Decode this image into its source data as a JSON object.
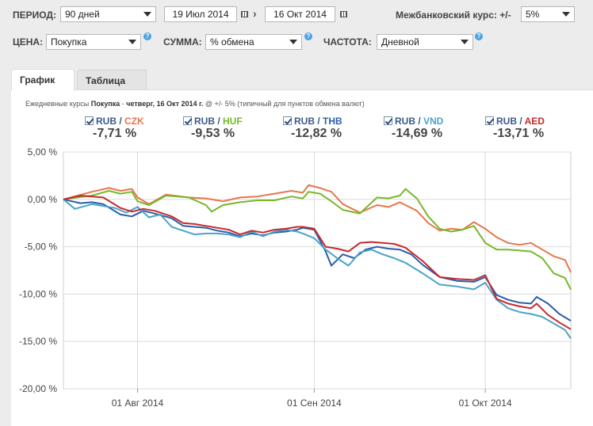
{
  "controls": {
    "period_label": "ПЕРИОД:",
    "period_value": "90 дней",
    "date_from": "19 Июл 2014",
    "date_arrow": "›",
    "date_to": "16 Окт 2014",
    "interbank_label": "Межбанковский курс: +/-",
    "interbank_value": "5%",
    "price_label": "ЦЕНА:",
    "price_value": "Покупка",
    "sum_label": "СУММА:",
    "sum_value": "% обмена",
    "freq_label": "ЧАСТОТА:",
    "freq_value": "Дневной",
    "help_glyph": "?"
  },
  "tabs": {
    "chart": "График",
    "table": "Таблица"
  },
  "subtitle": {
    "prefix": "Ежедневные курсы",
    "price": "Покупка",
    "sep": " - ",
    "date": "четверг, 16 Окт 2014 г.",
    "suffix": " @ +/- 5% (типичный для пунктов обмена валют)"
  },
  "legend": [
    {
      "base": "RUB",
      "sep": " / ",
      "quote": "CZK",
      "change": "-7,71 %",
      "color": "#e8764a"
    },
    {
      "base": "RUB",
      "sep": " / ",
      "quote": "HUF",
      "change": "-9,53 %",
      "color": "#76b82a"
    },
    {
      "base": "RUB",
      "sep": " / ",
      "quote": "THB",
      "change": "-12,82 %",
      "color": "#2a5ea8"
    },
    {
      "base": "RUB",
      "sep": " / ",
      "quote": "VND",
      "change": "-14,69 %",
      "color": "#4aa3c8"
    },
    {
      "base": "RUB",
      "sep": " / ",
      "quote": "AED",
      "change": "-13,71 %",
      "color": "#c8282c"
    }
  ],
  "chart_data": {
    "type": "line",
    "title": "Ежедневные курсы Покупка - четверг, 16 Окт 2014 г.",
    "ylim": [
      -20,
      5
    ],
    "yticks": [
      5,
      0,
      -5,
      -10,
      -15,
      -20
    ],
    "ytick_labels": [
      "5,00 %",
      "0,00 %",
      "-5,00 %",
      "-10,00 %",
      "-15,00 %",
      "-20,00 %"
    ],
    "xlim": [
      0,
      89
    ],
    "xticks": [
      13,
      44,
      74
    ],
    "xtick_labels": [
      "01 Авг 2014",
      "01 Сен 2014",
      "01 Окт 2014"
    ],
    "grid": true,
    "series": [
      {
        "name": "RUB / CZK",
        "color": "#e8764a",
        "points": [
          [
            0,
            0
          ],
          [
            5,
            0.8
          ],
          [
            8,
            1.2
          ],
          [
            10,
            0.9
          ],
          [
            12,
            1.1
          ],
          [
            13,
            0.2
          ],
          [
            15,
            -0.5
          ],
          [
            18,
            0.5
          ],
          [
            22,
            0.2
          ],
          [
            25,
            0.1
          ],
          [
            28,
            -0.2
          ],
          [
            31,
            0.2
          ],
          [
            34,
            0.3
          ],
          [
            37,
            0.6
          ],
          [
            40,
            0.9
          ],
          [
            42,
            0.7
          ],
          [
            43,
            1.5
          ],
          [
            45,
            1.2
          ],
          [
            47,
            0.8
          ],
          [
            49,
            -0.5
          ],
          [
            52,
            -1.4
          ],
          [
            55,
            -0.6
          ],
          [
            57,
            -0.8
          ],
          [
            59,
            -0.3
          ],
          [
            60,
            -0.6
          ],
          [
            62,
            -1.2
          ],
          [
            64,
            -2.5
          ],
          [
            66,
            -3.3
          ],
          [
            68,
            -3.1
          ],
          [
            70,
            -3.2
          ],
          [
            72,
            -2.4
          ],
          [
            74,
            -3.1
          ],
          [
            76,
            -4.0
          ],
          [
            78,
            -4.6
          ],
          [
            80,
            -4.8
          ],
          [
            82,
            -4.6
          ],
          [
            84,
            -5.3
          ],
          [
            86,
            -6.0
          ],
          [
            88,
            -6.4
          ],
          [
            89,
            -7.7
          ]
        ]
      },
      {
        "name": "RUB / HUF",
        "color": "#76b82a",
        "points": [
          [
            0,
            0
          ],
          [
            5,
            0.4
          ],
          [
            8,
            0.9
          ],
          [
            10,
            0.6
          ],
          [
            12,
            0.8
          ],
          [
            13,
            -0.2
          ],
          [
            15,
            -0.6
          ],
          [
            18,
            0.4
          ],
          [
            22,
            0.2
          ],
          [
            25,
            -0.6
          ],
          [
            26,
            -1.3
          ],
          [
            28,
            -0.6
          ],
          [
            31,
            -0.3
          ],
          [
            34,
            -0.1
          ],
          [
            37,
            -0.1
          ],
          [
            40,
            0.3
          ],
          [
            42,
            0.1
          ],
          [
            43,
            0.8
          ],
          [
            45,
            0.6
          ],
          [
            47,
            -0.2
          ],
          [
            49,
            -1.1
          ],
          [
            52,
            -1.5
          ],
          [
            55,
            0.2
          ],
          [
            57,
            0.1
          ],
          [
            59,
            0.4
          ],
          [
            60,
            1.1
          ],
          [
            62,
            0.1
          ],
          [
            64,
            -1.8
          ],
          [
            66,
            -3.1
          ],
          [
            68,
            -3.4
          ],
          [
            70,
            -3.2
          ],
          [
            72,
            -2.8
          ],
          [
            74,
            -4.6
          ],
          [
            76,
            -5.3
          ],
          [
            78,
            -5.3
          ],
          [
            80,
            -5.4
          ],
          [
            82,
            -5.5
          ],
          [
            84,
            -6.2
          ],
          [
            86,
            -7.8
          ],
          [
            88,
            -8.3
          ],
          [
            89,
            -9.53
          ]
        ]
      },
      {
        "name": "RUB / THB",
        "color": "#2a5ea8",
        "points": [
          [
            0,
            0
          ],
          [
            3,
            -0.4
          ],
          [
            5,
            -0.3
          ],
          [
            7,
            -0.5
          ],
          [
            10,
            -1.6
          ],
          [
            12,
            -1.8
          ],
          [
            14,
            -1.2
          ],
          [
            16,
            -1.5
          ],
          [
            19,
            -2.0
          ],
          [
            21,
            -2.8
          ],
          [
            23,
            -2.9
          ],
          [
            25,
            -3.0
          ],
          [
            27,
            -3.3
          ],
          [
            29,
            -3.5
          ],
          [
            31,
            -3.9
          ],
          [
            33,
            -3.6
          ],
          [
            35,
            -3.8
          ],
          [
            37,
            -3.5
          ],
          [
            39,
            -3.4
          ],
          [
            41,
            -3.2
          ],
          [
            42,
            -3.0
          ],
          [
            44,
            -3.2
          ],
          [
            46,
            -5.5
          ],
          [
            47,
            -7.0
          ],
          [
            49,
            -5.8
          ],
          [
            51,
            -6.2
          ],
          [
            53,
            -5.3
          ],
          [
            55,
            -5.0
          ],
          [
            57,
            -5.2
          ],
          [
            59,
            -5.3
          ],
          [
            61,
            -5.8
          ],
          [
            63,
            -6.9
          ],
          [
            66,
            -8.2
          ],
          [
            69,
            -8.6
          ],
          [
            72,
            -8.7
          ],
          [
            74,
            -8.2
          ],
          [
            76,
            -10.1
          ],
          [
            78,
            -10.6
          ],
          [
            80,
            -10.9
          ],
          [
            82,
            -11.0
          ],
          [
            83,
            -10.3
          ],
          [
            85,
            -11.0
          ],
          [
            87,
            -12.1
          ],
          [
            89,
            -12.82
          ]
        ]
      },
      {
        "name": "RUB / VND",
        "color": "#4aa3c8",
        "points": [
          [
            0,
            0
          ],
          [
            2,
            -1.0
          ],
          [
            5,
            -0.5
          ],
          [
            7,
            -0.7
          ],
          [
            9,
            -0.9
          ],
          [
            11,
            -1.4
          ],
          [
            13,
            -0.8
          ],
          [
            15,
            -1.9
          ],
          [
            17,
            -1.6
          ],
          [
            19,
            -2.9
          ],
          [
            21,
            -3.3
          ],
          [
            23,
            -3.7
          ],
          [
            25,
            -3.6
          ],
          [
            27,
            -3.6
          ],
          [
            29,
            -3.7
          ],
          [
            31,
            -4.0
          ],
          [
            33,
            -3.4
          ],
          [
            35,
            -3.9
          ],
          [
            37,
            -3.4
          ],
          [
            39,
            -3.2
          ],
          [
            41,
            -3.4
          ],
          [
            42,
            -3.6
          ],
          [
            44,
            -4.1
          ],
          [
            46,
            -5.3
          ],
          [
            48,
            -6.2
          ],
          [
            50,
            -7.0
          ],
          [
            52,
            -5.6
          ],
          [
            54,
            -5.3
          ],
          [
            56,
            -5.8
          ],
          [
            58,
            -6.2
          ],
          [
            60,
            -6.7
          ],
          [
            63,
            -7.8
          ],
          [
            66,
            -9.0
          ],
          [
            69,
            -9.2
          ],
          [
            72,
            -9.5
          ],
          [
            74,
            -8.8
          ],
          [
            76,
            -10.6
          ],
          [
            78,
            -11.5
          ],
          [
            80,
            -11.9
          ],
          [
            82,
            -12.1
          ],
          [
            84,
            -12.4
          ],
          [
            86,
            -13.1
          ],
          [
            88,
            -13.8
          ],
          [
            89,
            -14.69
          ]
        ]
      },
      {
        "name": "RUB / AED",
        "color": "#c8282c",
        "points": [
          [
            0,
            0
          ],
          [
            3,
            0.4
          ],
          [
            5,
            0.3
          ],
          [
            7,
            0.2
          ],
          [
            10,
            -0.9
          ],
          [
            12,
            -1.3
          ],
          [
            14,
            -1.0
          ],
          [
            16,
            -1.2
          ],
          [
            19,
            -1.8
          ],
          [
            21,
            -2.5
          ],
          [
            23,
            -2.6
          ],
          [
            25,
            -2.8
          ],
          [
            27,
            -3.0
          ],
          [
            29,
            -3.2
          ],
          [
            31,
            -3.7
          ],
          [
            33,
            -3.3
          ],
          [
            35,
            -3.5
          ],
          [
            37,
            -3.2
          ],
          [
            39,
            -3.1
          ],
          [
            41,
            -2.9
          ],
          [
            42,
            -2.9
          ],
          [
            44,
            -3.1
          ],
          [
            46,
            -5.0
          ],
          [
            48,
            -5.2
          ],
          [
            50,
            -5.5
          ],
          [
            52,
            -4.6
          ],
          [
            54,
            -4.5
          ],
          [
            56,
            -4.6
          ],
          [
            58,
            -4.7
          ],
          [
            60,
            -5.1
          ],
          [
            63,
            -6.5
          ],
          [
            66,
            -8.2
          ],
          [
            69,
            -8.4
          ],
          [
            72,
            -8.5
          ],
          [
            74,
            -8.0
          ],
          [
            76,
            -10.5
          ],
          [
            78,
            -11.0
          ],
          [
            80,
            -11.3
          ],
          [
            82,
            -11.5
          ],
          [
            83,
            -11.0
          ],
          [
            85,
            -12.2
          ],
          [
            87,
            -13.0
          ],
          [
            89,
            -13.71
          ]
        ]
      }
    ]
  }
}
